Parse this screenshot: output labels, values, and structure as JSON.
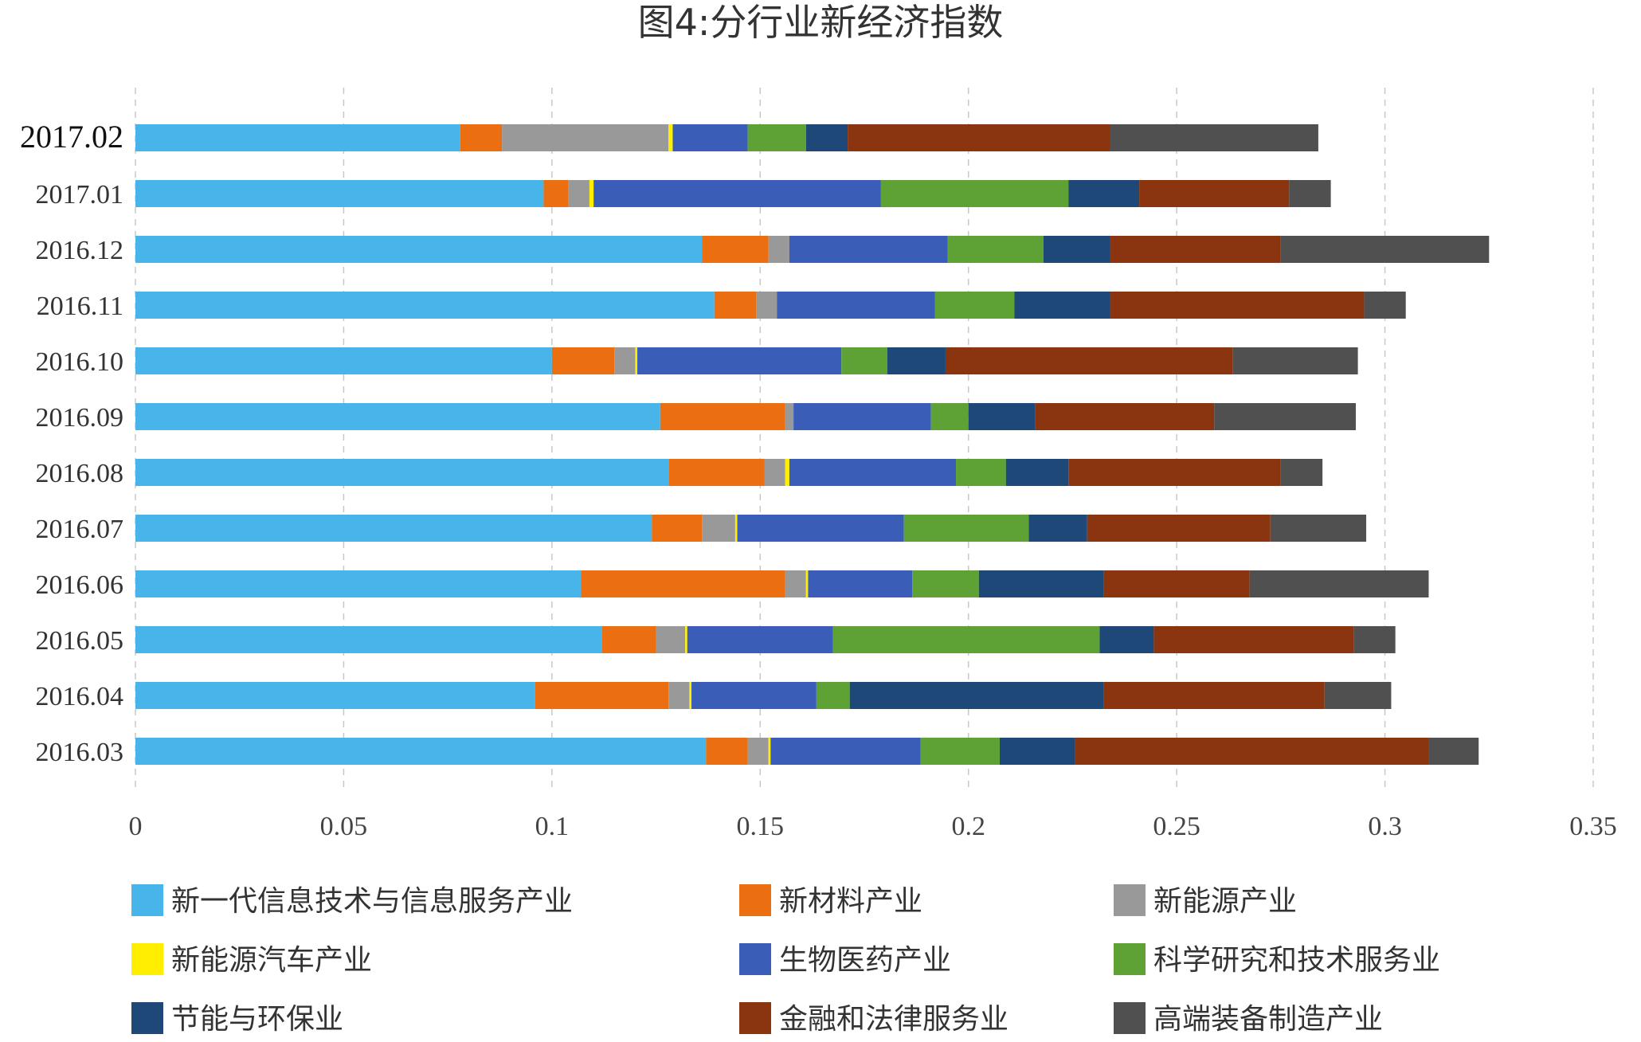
{
  "chart_data": {
    "type": "bar",
    "orientation": "horizontal",
    "stacked": true,
    "title": "图4:分行业新经济指数",
    "xlabel": "",
    "ylabel": "",
    "xlim": [
      0,
      0.35
    ],
    "ticks": [
      "0",
      "0.05",
      "0.1",
      "0.15",
      "0.2",
      "0.25",
      "0.3",
      "0.35"
    ],
    "tick_values": [
      0,
      0.05,
      0.1,
      0.15,
      0.2,
      0.25,
      0.3,
      0.35
    ],
    "grid": true,
    "legend_position": "bottom",
    "categories": [
      "2017.02",
      "2017.01",
      "2016.12",
      "2016.11",
      "2016.10",
      "2016.09",
      "2016.08",
      "2016.07",
      "2016.06",
      "2016.05",
      "2016.04",
      "2016.03"
    ],
    "series": [
      {
        "name": "新一代信息技术与信息服务产业",
        "color": "#47b4ea",
        "values": [
          0.078,
          0.098,
          0.136,
          0.139,
          0.1,
          0.126,
          0.128,
          0.124,
          0.107,
          0.112,
          0.096,
          0.137
        ]
      },
      {
        "name": "新材料产业",
        "color": "#eb6e10",
        "values": [
          0.01,
          0.006,
          0.016,
          0.01,
          0.015,
          0.03,
          0.023,
          0.012,
          0.049,
          0.013,
          0.032,
          0.01
        ]
      },
      {
        "name": "新能源产业",
        "color": "#999999",
        "values": [
          0.04,
          0.005,
          0.005,
          0.005,
          0.005,
          0.002,
          0.005,
          0.008,
          0.005,
          0.007,
          0.005,
          0.005
        ]
      },
      {
        "name": "新能源汽车产业",
        "color": "#ffee00",
        "values": [
          0.001,
          0.001,
          0.0,
          0.0,
          0.0005,
          0.0,
          0.001,
          0.0005,
          0.0005,
          0.0005,
          0.0005,
          0.0005
        ]
      },
      {
        "name": "生物医药产业",
        "color": "#3a5eb8",
        "values": [
          0.018,
          0.069,
          0.038,
          0.038,
          0.049,
          0.033,
          0.04,
          0.04,
          0.025,
          0.035,
          0.03,
          0.036
        ]
      },
      {
        "name": "科学研究和技术服务业",
        "color": "#5ea236",
        "values": [
          0.014,
          0.045,
          0.023,
          0.019,
          0.011,
          0.009,
          0.012,
          0.03,
          0.016,
          0.064,
          0.008,
          0.019
        ]
      },
      {
        "name": "节能与环保业",
        "color": "#1d4878",
        "values": [
          0.01,
          0.017,
          0.016,
          0.023,
          0.014,
          0.016,
          0.015,
          0.014,
          0.03,
          0.013,
          0.061,
          0.018
        ]
      },
      {
        "name": "金融和法律服务业",
        "color": "#8b3510",
        "values": [
          0.063,
          0.036,
          0.041,
          0.061,
          0.069,
          0.043,
          0.051,
          0.044,
          0.035,
          0.048,
          0.053,
          0.085
        ]
      },
      {
        "name": "高端装备制造产业",
        "color": "#505050",
        "values": [
          0.05,
          0.01,
          0.05,
          0.01,
          0.03,
          0.034,
          0.01,
          0.023,
          0.043,
          0.01,
          0.016,
          0.012
        ]
      }
    ]
  }
}
